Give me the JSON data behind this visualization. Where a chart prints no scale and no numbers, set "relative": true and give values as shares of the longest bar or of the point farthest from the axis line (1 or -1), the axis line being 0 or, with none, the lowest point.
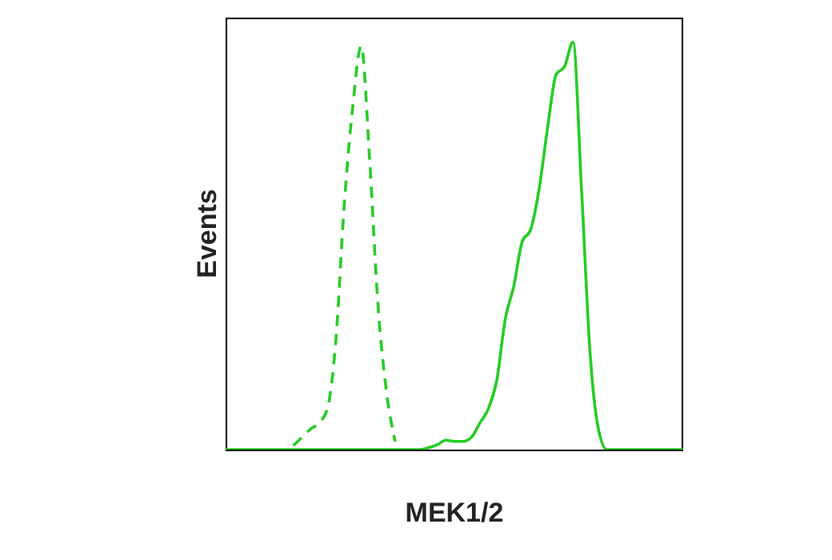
{
  "chart_data": {
    "type": "line",
    "xlabel": "MEK1/2",
    "ylabel": "Events",
    "relative": true,
    "marker": "none",
    "categories": [
      null,
      null,
      null,
      null,
      null,
      null,
      null,
      null,
      null,
      null,
      null,
      null,
      null,
      null,
      null,
      null,
      null,
      null,
      null,
      null,
      null,
      null,
      null,
      null,
      null,
      null,
      null,
      null,
      null,
      null,
      null,
      null,
      null,
      null,
      null,
      null,
      null,
      null,
      null,
      null,
      null,
      null,
      null,
      null,
      null,
      null,
      null,
      null,
      null,
      null,
      null,
      null,
      null,
      null,
      null
    ],
    "series": [
      {
        "color": "#22cc22",
        "line_style": "dashed",
        "values": [
          null,
          null,
          null,
          null,
          null,
          null,
          null,
          null,
          0.01,
          0.03,
          0.05,
          0.065,
          0.1,
          0.265,
          0.6,
          0.84,
          0.99,
          0.71,
          0.35,
          0.14,
          0.02,
          null,
          null,
          null,
          null,
          null,
          null,
          null,
          null,
          null,
          null,
          null,
          null,
          null,
          null,
          null,
          null,
          null,
          null,
          null,
          null,
          null,
          null,
          null,
          null,
          null,
          null,
          null,
          null,
          null,
          null,
          null,
          null,
          null,
          null
        ]
      },
      {
        "color": "#22cc22",
        "line_style": "solid",
        "values": [
          0,
          0,
          0,
          0,
          0,
          0,
          0,
          0,
          0,
          0,
          0,
          0,
          0,
          0,
          0,
          0,
          0,
          0,
          0,
          0,
          0,
          0,
          0,
          0,
          0.005,
          0.012,
          0.023,
          0.02,
          0.02,
          0.03,
          0.065,
          0.1,
          0.17,
          0.32,
          0.4,
          0.51,
          0.54,
          0.64,
          0.79,
          0.92,
          0.94,
          1,
          0.64,
          0.24,
          0.05,
          0,
          0,
          0,
          0,
          0,
          0,
          0,
          0,
          0,
          0
        ]
      }
    ]
  }
}
